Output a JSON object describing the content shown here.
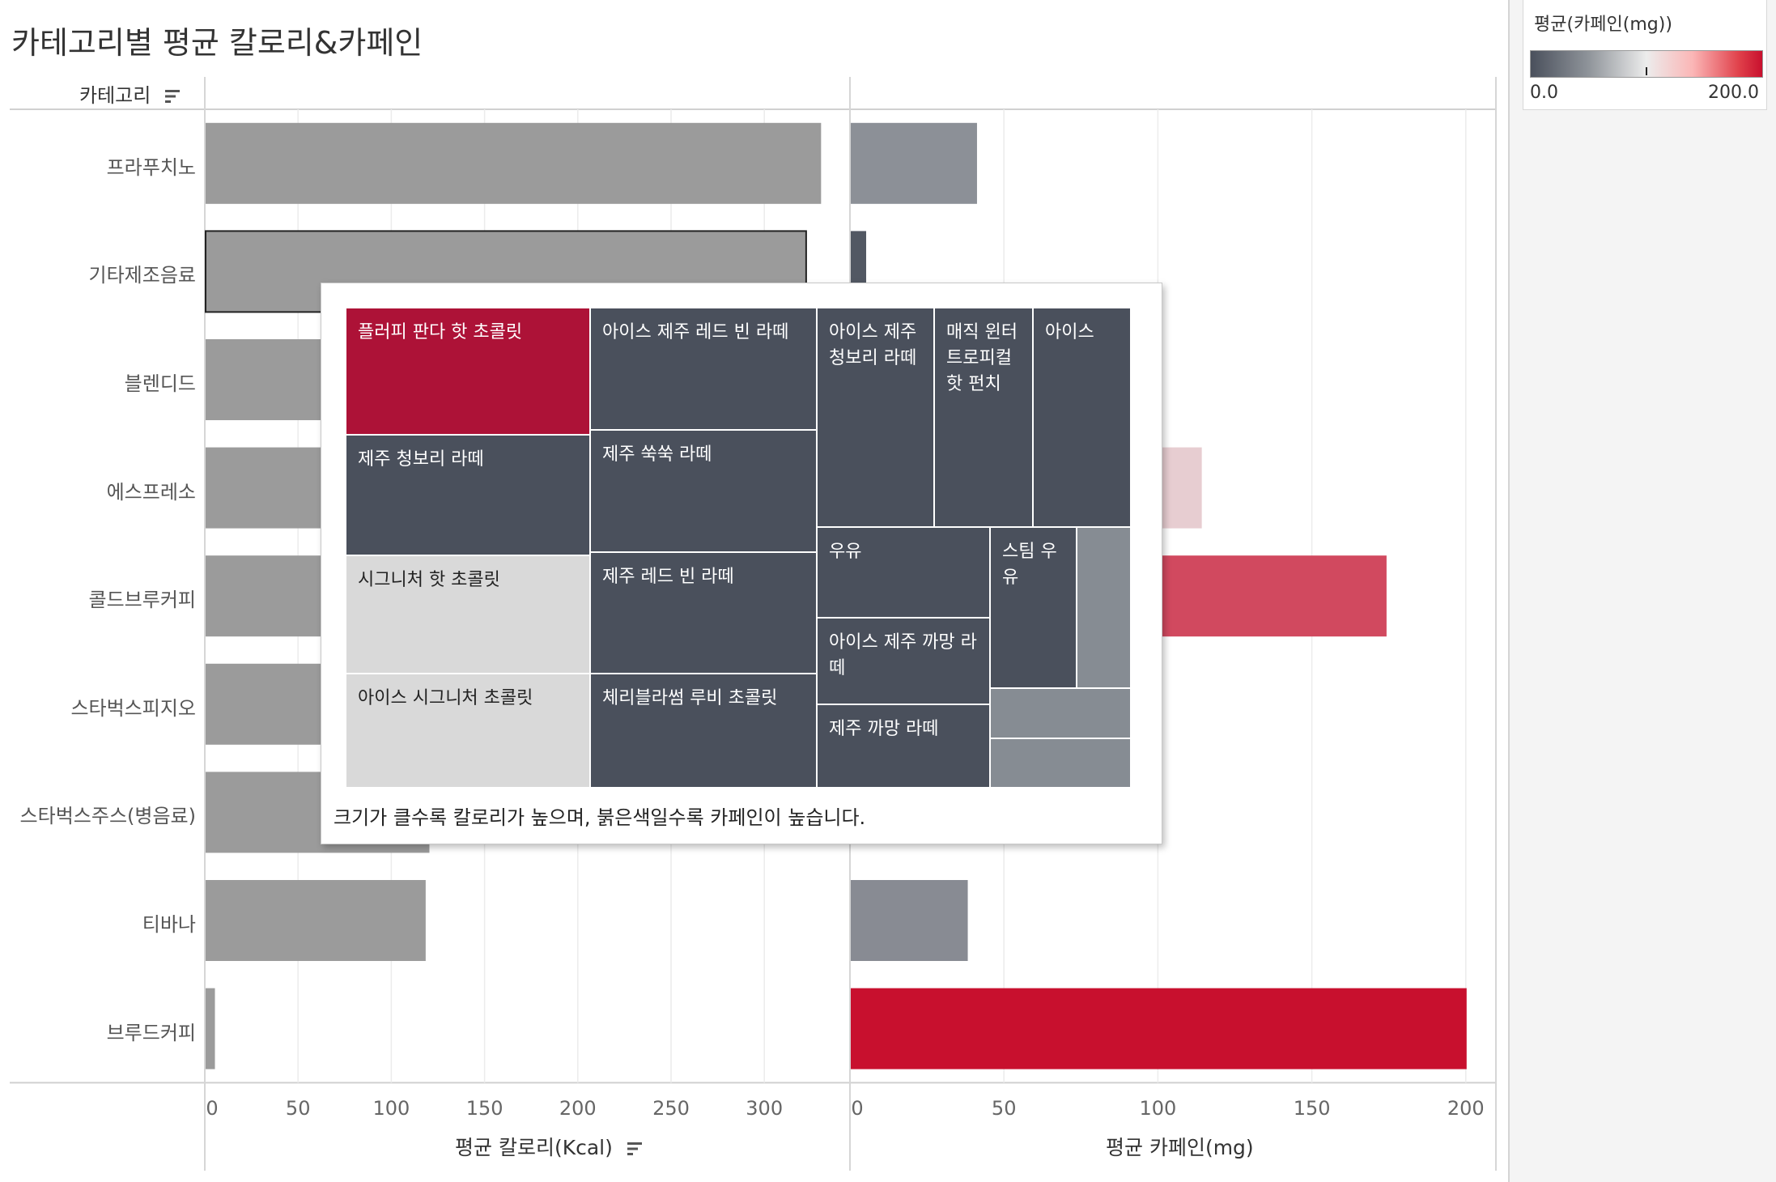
{
  "title": "카테고리별 평균 칼로리&카페인",
  "category_header": "카테고리",
  "legend": {
    "title": "평균(카페인(mg))",
    "min_label": "0.0",
    "max_label": "200.0",
    "colors": [
      "#4a505c",
      "#ececec",
      "#c8102e"
    ]
  },
  "chart_data": [
    {
      "type": "bar",
      "orientation": "horizontal",
      "categories": [
        "프라푸치노",
        "기타제조음료",
        "블렌디드",
        "에스프레소",
        "콜드브루커피",
        "스타벅스피지오",
        "스타벅스주스(병음료)",
        "티바나",
        "브루드커피"
      ],
      "values": [
        330,
        322,
        280,
        270,
        230,
        240,
        120,
        118,
        5
      ],
      "xlabel": "평균 칼로리(Kcal)",
      "xticks": [
        "0",
        "50",
        "100",
        "150",
        "200",
        "250",
        "300"
      ],
      "xlim": [
        0,
        345
      ],
      "bar_color": "#9b9b9b",
      "highlighted_category": "기타제조음료"
    },
    {
      "type": "bar",
      "orientation": "horizontal",
      "categories": [
        "프라푸치노",
        "기타제조음료",
        "블렌디드",
        "에스프레소",
        "콜드브루커피",
        "스타벅스피지오",
        "스타벅스주스(병음료)",
        "티바나",
        "브루드커피"
      ],
      "values": [
        41,
        5,
        60,
        114,
        174,
        0,
        0,
        38,
        200
      ],
      "xlabel": "평균 카페인(mg)",
      "xticks": [
        "0",
        "50",
        "100",
        "150",
        "200"
      ],
      "xlim": [
        0,
        210
      ],
      "color_scale": {
        "min": 0,
        "max": 200
      }
    },
    {
      "type": "treemap",
      "caption": "크기가 클수록 칼로리가 높으며, 붉은색일수록 카페인이 높습니다.",
      "items": [
        {
          "label": "플러피 판다 핫 초콜릿",
          "color": "#ad1237"
        },
        {
          "label": "아이스 제주 레드 빈 라떼",
          "color": "#4a505c"
        },
        {
          "label": "아이스 제주 청보리 라떼",
          "color": "#4a505c"
        },
        {
          "label": "매직 윈터 트로피컬 핫 펀치",
          "color": "#4a505c"
        },
        {
          "label": "아이스",
          "color": "#4a505c"
        },
        {
          "label": "제주 청보리 라떼",
          "color": "#4a505c"
        },
        {
          "label": "제주 쑥쑥 라떼",
          "color": "#4a505c"
        },
        {
          "label": "시그니처 핫 초콜릿",
          "color": "#d9d9d9"
        },
        {
          "label": "제주 레드 빈 라떼",
          "color": "#4a505c"
        },
        {
          "label": "우유",
          "color": "#4a505c"
        },
        {
          "label": "스팀 우유",
          "color": "#4a505c"
        },
        {
          "label": "",
          "color": "#868c93"
        },
        {
          "label": "아이스 제주 까망 라떼",
          "color": "#4a505c"
        },
        {
          "label": "아이스 시그니처 초콜릿",
          "color": "#d9d9d9"
        },
        {
          "label": "체리블라썸 루비 초콜릿",
          "color": "#4a505c"
        },
        {
          "label": "제주 까망 라떼",
          "color": "#4a505c"
        },
        {
          "label": "",
          "color": "#868c93"
        },
        {
          "label": "",
          "color": "#868c93"
        }
      ]
    }
  ]
}
